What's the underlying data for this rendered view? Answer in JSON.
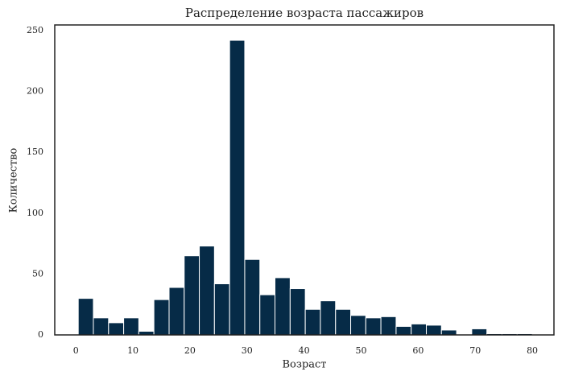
{
  "chart_data": {
    "type": "histogram",
    "title": "Распределение возраста пассажиров",
    "x_label": "Возраст",
    "y_label": "Количество",
    "color": "#062b47",
    "bins": [
      0.42,
      3.07,
      5.73,
      8.38,
      11.03,
      13.68,
      16.34,
      18.99,
      21.64,
      24.29,
      26.95,
      29.6,
      32.25,
      34.9,
      37.56,
      40.21,
      42.86,
      45.52,
      48.17,
      50.82,
      53.47,
      56.13,
      58.78,
      61.43,
      64.08,
      66.74,
      69.39,
      72.04,
      74.69,
      77.35,
      80.0
    ],
    "values": [
      30,
      14,
      10,
      14,
      3,
      29,
      39,
      65,
      73,
      42,
      242,
      62,
      33,
      47,
      38,
      21,
      28,
      21,
      16,
      14,
      15,
      7,
      9,
      8,
      4,
      0,
      5,
      1,
      1,
      1
    ],
    "xlim": [
      -3.7,
      83.8
    ],
    "xticks": [
      0,
      10,
      20,
      30,
      40,
      50,
      60,
      70,
      80
    ],
    "ylim": [
      0,
      254.6
    ],
    "yticks": [
      0,
      50,
      100,
      150,
      200,
      250
    ]
  }
}
